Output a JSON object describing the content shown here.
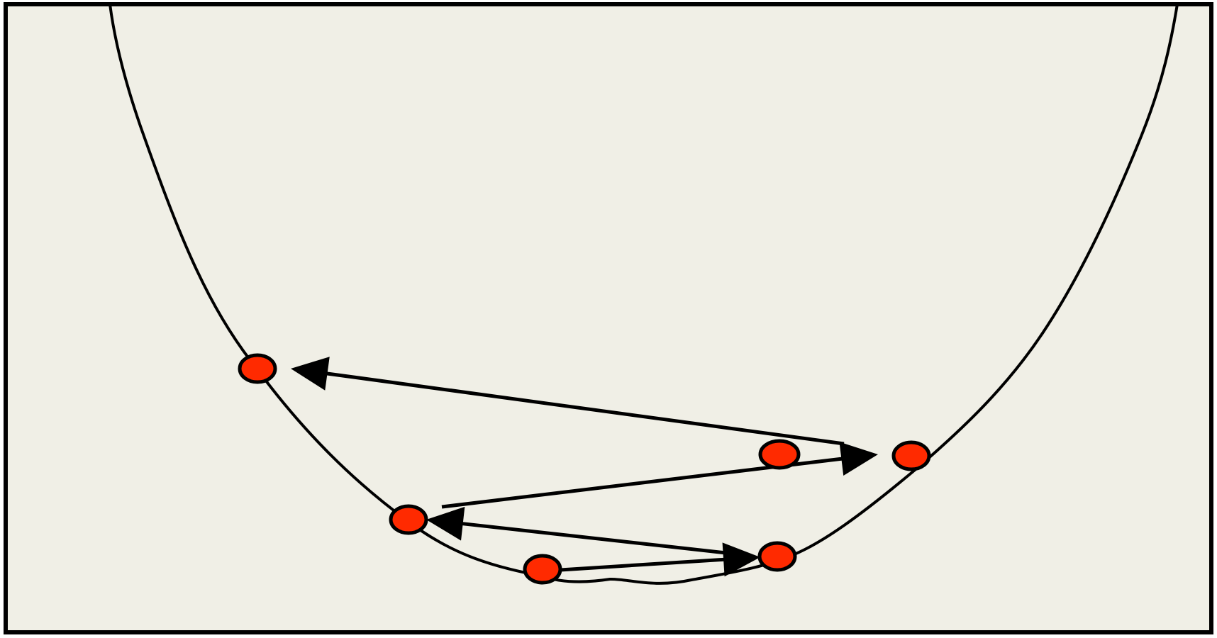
{
  "diagram": {
    "type": "loss-landscape-oscillation",
    "colors": {
      "background": "#f0efe6",
      "frame": "#000000",
      "curve": "#000000",
      "point_fill": "#ff2a00",
      "point_stroke": "#000000",
      "arrow": "#000000"
    },
    "points": [
      {
        "id": "p1",
        "order": 1
      },
      {
        "id": "p2",
        "order": 2
      },
      {
        "id": "p3",
        "order": 3
      },
      {
        "id": "p4",
        "order": 4
      },
      {
        "id": "p5",
        "order": 5
      },
      {
        "id": "p6",
        "order": 6
      }
    ],
    "arrows": [
      {
        "from": "p1",
        "to": "p2"
      },
      {
        "from": "p2",
        "to": "p3"
      },
      {
        "from": "p3",
        "to": "p4"
      },
      {
        "from": "p4",
        "to": "p5"
      }
    ]
  }
}
